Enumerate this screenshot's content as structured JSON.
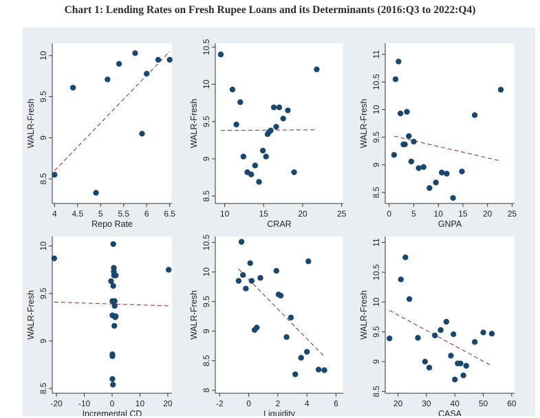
{
  "title": "Chart 1: Lending Rates on Fresh Rupee Loans and its Determinants (2016:Q3 to 2022:Q4)",
  "colors": {
    "point": "#1a476f",
    "fit_line": "#90353b",
    "panel_bg": "#e9eef2"
  },
  "chart_data": [
    {
      "type": "scatter",
      "xlabel": "Repo Rate",
      "ylabel": "WALR-Fresh",
      "xlim": [
        3.95,
        6.55
      ],
      "ylim": [
        8.2,
        10.15
      ],
      "xticks": [
        4,
        4.5,
        5,
        5.5,
        6,
        6.5
      ],
      "xtick_labels": [
        "4",
        "4.5",
        "5",
        "5.5",
        "6",
        "6.5"
      ],
      "yticks": [
        8.5,
        9,
        9.5,
        10
      ],
      "ytick_labels": [
        "8.5",
        "9",
        "9.5",
        "10"
      ],
      "points": [
        [
          4.0,
          8.55
        ],
        [
          4.4,
          9.61
        ],
        [
          4.9,
          8.33
        ],
        [
          5.15,
          9.71
        ],
        [
          5.4,
          9.9
        ],
        [
          5.75,
          10.03
        ],
        [
          5.9,
          9.05
        ],
        [
          6.0,
          9.78
        ],
        [
          6.25,
          9.95
        ],
        [
          6.5,
          9.95
        ]
      ],
      "fit": [
        [
          4.0,
          8.6
        ],
        [
          6.5,
          10.05
        ]
      ]
    },
    {
      "type": "scatter",
      "xlabel": "CRAR",
      "ylabel": "WALR-Fresh",
      "xlim": [
        8.8,
        25.2
      ],
      "ylim": [
        8.4,
        10.55
      ],
      "xticks": [
        10,
        15,
        20,
        25
      ],
      "xtick_labels": [
        "10",
        "15",
        "20",
        "25"
      ],
      "yticks": [
        8.5,
        9,
        9.5,
        10,
        10.5
      ],
      "ytick_labels": [
        "8.5",
        "9",
        "9.5",
        "10",
        "10.5"
      ],
      "points": [
        [
          9.5,
          10.4
        ],
        [
          11.0,
          9.93
        ],
        [
          11.5,
          9.46
        ],
        [
          12.0,
          9.76
        ],
        [
          12.4,
          9.03
        ],
        [
          12.9,
          8.82
        ],
        [
          13.4,
          8.79
        ],
        [
          13.9,
          8.91
        ],
        [
          14.4,
          8.69
        ],
        [
          14.9,
          9.11
        ],
        [
          15.3,
          9.03
        ],
        [
          15.5,
          9.33
        ],
        [
          15.7,
          9.36
        ],
        [
          15.9,
          9.38
        ],
        [
          16.3,
          9.69
        ],
        [
          16.6,
          9.43
        ],
        [
          17.0,
          9.69
        ],
        [
          17.5,
          9.54
        ],
        [
          18.1,
          9.65
        ],
        [
          18.9,
          8.82
        ],
        [
          21.8,
          10.2
        ]
      ],
      "fit": [
        [
          9.5,
          9.38
        ],
        [
          21.8,
          9.39
        ]
      ]
    },
    {
      "type": "scatter",
      "xlabel": "GNPA",
      "ylabel": "WALR-Fresh",
      "xlim": [
        -0.8,
        25.5
      ],
      "ylim": [
        8.3,
        11.2
      ],
      "xticks": [
        0,
        5,
        10,
        15,
        20,
        25
      ],
      "xtick_labels": [
        "0",
        "5",
        "10",
        "15",
        "20",
        "25"
      ],
      "yticks": [
        8.5,
        9,
        9.5,
        10,
        10.5,
        11
      ],
      "ytick_labels": [
        "8.5",
        "9",
        "9.5",
        "10",
        "10.5",
        "11"
      ],
      "points": [
        [
          1.0,
          9.18
        ],
        [
          1.3,
          10.55
        ],
        [
          1.9,
          10.87
        ],
        [
          2.3,
          9.93
        ],
        [
          2.9,
          9.37
        ],
        [
          3.2,
          9.37
        ],
        [
          3.6,
          9.96
        ],
        [
          4.0,
          9.52
        ],
        [
          4.5,
          9.06
        ],
        [
          5.0,
          9.42
        ],
        [
          6.0,
          8.94
        ],
        [
          7.0,
          8.96
        ],
        [
          8.2,
          8.58
        ],
        [
          9.5,
          8.68
        ],
        [
          10.7,
          8.86
        ],
        [
          11.7,
          8.84
        ],
        [
          13.0,
          8.4
        ],
        [
          14.8,
          8.88
        ],
        [
          17.4,
          9.9
        ],
        [
          22.7,
          10.36
        ]
      ],
      "fit": [
        [
          1.0,
          9.52
        ],
        [
          22.7,
          9.07
        ]
      ]
    },
    {
      "type": "scatter",
      "xlabel": "Incremental CD",
      "ylabel": "WALR-Fresh",
      "xlim": [
        -21.5,
        21.5
      ],
      "ylim": [
        8.45,
        10.1
      ],
      "xticks": [
        -20,
        -10,
        0,
        10,
        20
      ],
      "xtick_labels": [
        "-20",
        "-10",
        "0",
        "10",
        "20"
      ],
      "yticks": [
        8.5,
        9,
        9.5,
        10
      ],
      "ytick_labels": [
        "8.5",
        "9",
        "9.5",
        "10"
      ],
      "points": [
        [
          -20.8,
          9.87
        ],
        [
          0.4,
          10.02
        ],
        [
          0.6,
          9.77
        ],
        [
          0.6,
          9.73
        ],
        [
          0.7,
          9.69
        ],
        [
          1.3,
          9.69
        ],
        [
          -0.4,
          9.63
        ],
        [
          0.4,
          9.58
        ],
        [
          0.1,
          9.42
        ],
        [
          0.9,
          9.42
        ],
        [
          0.9,
          9.37
        ],
        [
          0.1,
          9.27
        ],
        [
          1.1,
          9.25
        ],
        [
          1.3,
          9.26
        ],
        [
          0.8,
          9.16
        ],
        [
          0.1,
          8.86
        ],
        [
          0.1,
          8.84
        ],
        [
          0.1,
          8.6
        ],
        [
          0.3,
          8.54
        ],
        [
          20.3,
          9.75
        ]
      ],
      "fit": [
        [
          -20.8,
          9.41
        ],
        [
          20.3,
          9.37
        ]
      ]
    },
    {
      "type": "scatter",
      "xlabel": "Liquidity",
      "ylabel": "WALR-Fresh",
      "xlim": [
        -2.3,
        6.5
      ],
      "ylim": [
        7.95,
        10.6
      ],
      "xticks": [
        -2,
        0,
        2,
        4,
        6
      ],
      "xtick_labels": [
        "-2",
        "0",
        "2",
        "4",
        "6"
      ],
      "yticks": [
        8,
        8.5,
        9,
        9.5,
        10,
        10.5
      ],
      "ytick_labels": [
        "8",
        "8.5",
        "9",
        "9.5",
        "10",
        "10.5"
      ],
      "points": [
        [
          -0.5,
          10.51
        ],
        [
          -0.7,
          9.85
        ],
        [
          -0.4,
          9.95
        ],
        [
          -0.2,
          9.72
        ],
        [
          0.1,
          10.15
        ],
        [
          0.2,
          9.85
        ],
        [
          0.8,
          9.9
        ],
        [
          0.4,
          9.02
        ],
        [
          0.55,
          9.06
        ],
        [
          1.9,
          10.02
        ],
        [
          2.05,
          9.62
        ],
        [
          2.2,
          9.6
        ],
        [
          2.6,
          8.9
        ],
        [
          2.9,
          9.23
        ],
        [
          3.2,
          8.27
        ],
        [
          3.6,
          8.55
        ],
        [
          4.0,
          8.65
        ],
        [
          4.1,
          10.18
        ],
        [
          4.8,
          8.35
        ],
        [
          5.2,
          8.34
        ]
      ],
      "fit": [
        [
          -0.7,
          10.05
        ],
        [
          5.2,
          8.57
        ]
      ]
    },
    {
      "type": "scatter",
      "xlabel": "CASA",
      "ylabel": "WALR-Fresh",
      "xlim": [
        15.5,
        61
      ],
      "ylim": [
        8.47,
        11.1
      ],
      "xticks": [
        20,
        30,
        40,
        50,
        60
      ],
      "xtick_labels": [
        "20",
        "30",
        "40",
        "50",
        "60"
      ],
      "yticks": [
        8.5,
        9,
        9.5,
        10,
        10.5,
        11
      ],
      "ytick_labels": [
        "8.5",
        "9",
        "9.5",
        "10",
        "10.5",
        "11"
      ],
      "points": [
        [
          17.0,
          9.39
        ],
        [
          21.0,
          10.38
        ],
        [
          22.6,
          10.75
        ],
        [
          24.0,
          10.05
        ],
        [
          27.0,
          9.4
        ],
        [
          29.5,
          9.0
        ],
        [
          31.0,
          8.9
        ],
        [
          33.0,
          9.44
        ],
        [
          35.0,
          9.53
        ],
        [
          37.0,
          9.67
        ],
        [
          38.6,
          9.1
        ],
        [
          39.5,
          9.46
        ],
        [
          41.0,
          8.97
        ],
        [
          42.0,
          8.97
        ],
        [
          43.0,
          8.77
        ],
        [
          40.0,
          8.7
        ],
        [
          44.0,
          8.93
        ],
        [
          47.0,
          9.33
        ],
        [
          50.0,
          9.49
        ],
        [
          53.0,
          9.47
        ]
      ],
      "fit": [
        [
          17.0,
          9.86
        ],
        [
          53.0,
          8.93
        ]
      ]
    }
  ]
}
